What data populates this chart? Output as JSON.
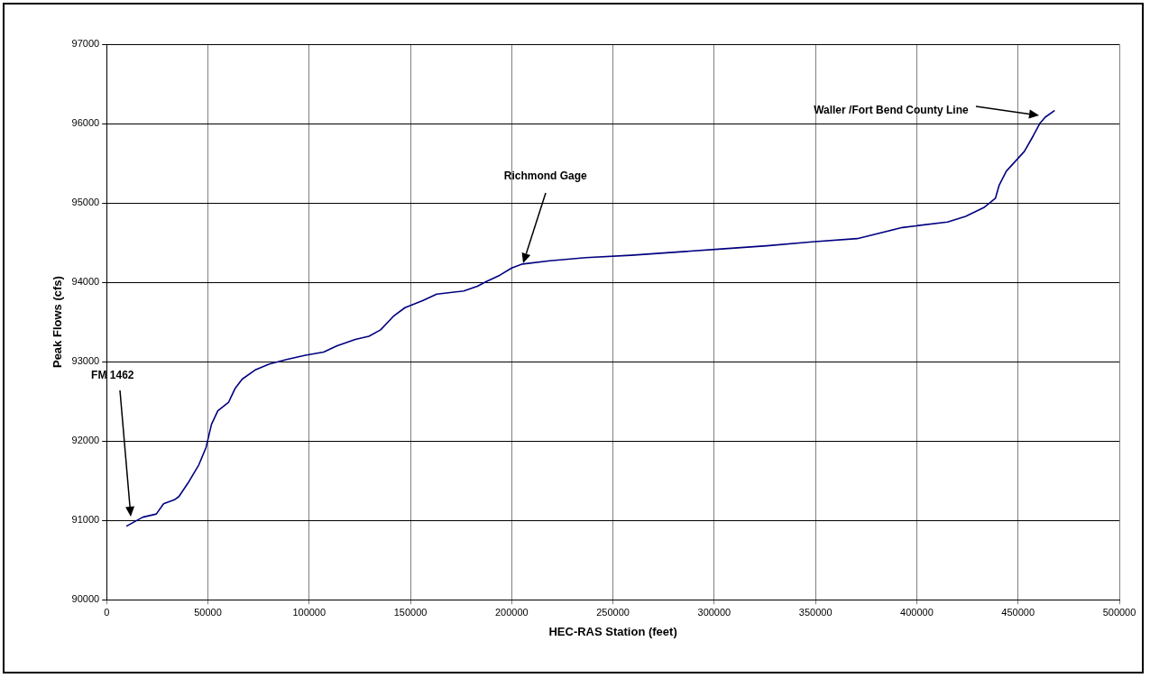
{
  "chart_data": {
    "type": "line",
    "xlabel": "HEC-RAS Station (feet)",
    "ylabel": "Peak Flows (cfs)",
    "xlim": [
      0,
      500000
    ],
    "xticks": [
      0,
      50000,
      100000,
      150000,
      200000,
      250000,
      300000,
      350000,
      400000,
      450000,
      500000
    ],
    "ylim": [
      90000,
      97000
    ],
    "yticks": [
      90000,
      91000,
      92000,
      93000,
      94000,
      95000,
      96000,
      97000
    ],
    "grid": true,
    "legend": false,
    "marker": "none",
    "line_style": "solid",
    "series": [
      {
        "color": "#000080",
        "x": [
          10000,
          17860,
          24550,
          28130,
          33480,
          35700,
          40180,
          45540,
          49110,
          51790,
          54910,
          60270,
          63390,
          66960,
          73660,
          80360,
          89290,
          98210,
          107140,
          113840,
          122770,
          129460,
          135270,
          141520,
          147320,
          156250,
          162950,
          169640,
          176340,
          183040,
          187500,
          194200,
          200000,
          205360,
          218750,
          236610,
          258930,
          281250,
          303570,
          325890,
          348210,
          370540,
          392860,
          415180,
          424110,
          433040,
          438840,
          440630,
          444200,
          453130,
          457590,
          460710,
          463390,
          467860
        ],
        "values": [
          90930,
          91040,
          91080,
          91210,
          91260,
          91300,
          91470,
          91700,
          91920,
          92210,
          92380,
          92490,
          92660,
          92780,
          92900,
          92970,
          93030,
          93080,
          93120,
          93200,
          93280,
          93320,
          93400,
          93570,
          93680,
          93770,
          93850,
          93870,
          93890,
          93950,
          94010,
          94090,
          94180,
          94230,
          94270,
          94310,
          94340,
          94380,
          94420,
          94460,
          94510,
          94550,
          94690,
          94760,
          94830,
          94940,
          95060,
          95220,
          95400,
          95650,
          95850,
          96000,
          96080,
          96160
        ]
      }
    ],
    "annotations": [
      "FM 1462",
      "Richmond Gage",
      "Waller /Fort Bend County Line"
    ]
  }
}
